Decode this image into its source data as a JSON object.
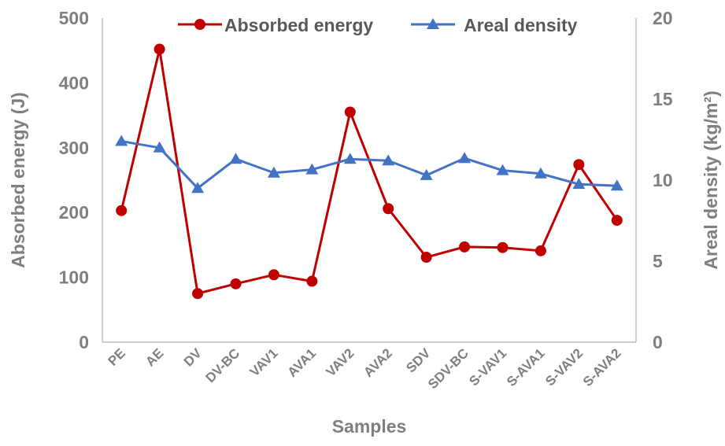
{
  "chart_data": {
    "type": "line",
    "categories": [
      "PE",
      "AE",
      "DV",
      "DV-BC",
      "VAV1",
      "AVA1",
      "VAV2",
      "AVA2",
      "SDV",
      "SDV-BC",
      "S-VAV1",
      "S-AVA1",
      "S-VAV2",
      "S-AVA2"
    ],
    "series": [
      {
        "name": "Absorbed energy",
        "axis": "left",
        "color": "#c00000",
        "marker": "circle",
        "values": [
          203,
          452,
          75,
          90,
          104,
          94,
          355,
          206,
          131,
          147,
          146,
          141,
          274,
          188
        ]
      },
      {
        "name": "Areal density",
        "axis": "right",
        "color": "#4472c4",
        "marker": "triangle",
        "values": [
          12.4,
          12.0,
          9.5,
          11.3,
          10.45,
          10.65,
          11.3,
          11.2,
          10.3,
          11.35,
          10.6,
          10.4,
          9.75,
          9.65
        ]
      }
    ],
    "xlabel": "Samples",
    "ylabel": "Absorbed energy (J)",
    "y2label": "Areal density (kg/m²)",
    "ylim": [
      0,
      500
    ],
    "y2lim": [
      0,
      20
    ],
    "yticks": [
      "0",
      "100",
      "200",
      "300",
      "400",
      "500"
    ],
    "y2ticks": [
      "0",
      "5",
      "10",
      "15",
      "20"
    ],
    "grid": false,
    "legend": "top"
  }
}
